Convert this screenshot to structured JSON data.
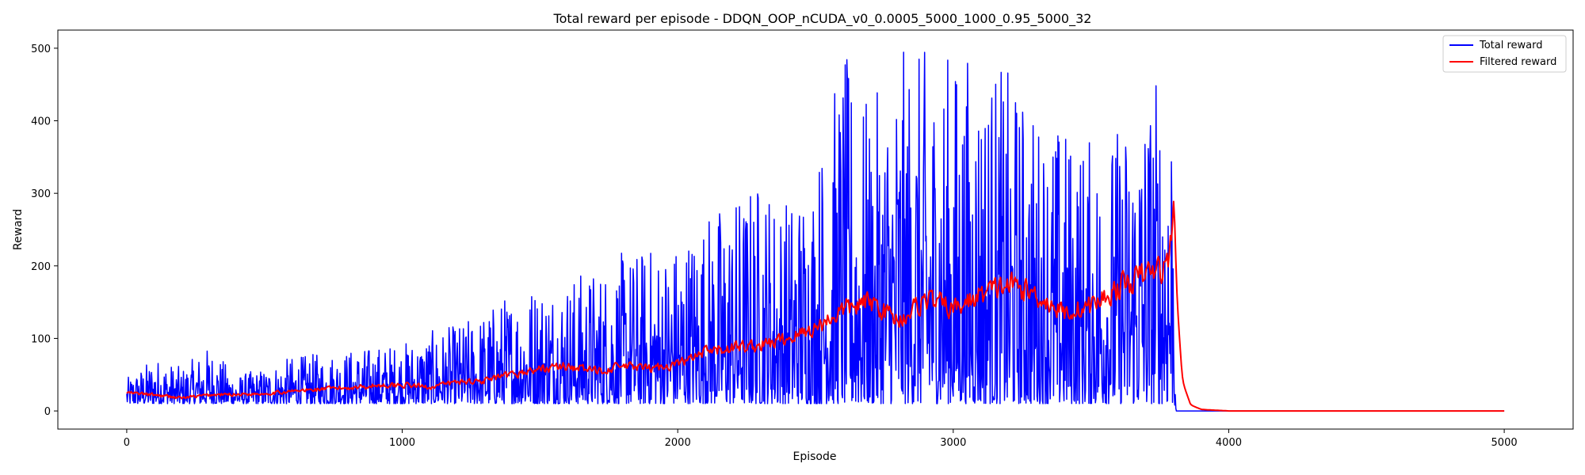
{
  "chart_data": {
    "type": "line",
    "title": "Total reward per episode - DDQN_OOP_nCUDA_v0_0.0005_5000_1000_0.95_5000_32",
    "xlabel": "Episode",
    "ylabel": "Reward",
    "xlim": [
      -250,
      5250
    ],
    "ylim": [
      -25,
      525
    ],
    "xticks": [
      0,
      1000,
      2000,
      3000,
      4000,
      5000
    ],
    "yticks": [
      0,
      100,
      200,
      300,
      400,
      500
    ],
    "grid": false,
    "legend_position": "top-right",
    "series": [
      {
        "name": "Total reward",
        "color": "#0000ff",
        "x": [
          0,
          100,
          200,
          300,
          400,
          500,
          600,
          700,
          800,
          900,
          1000,
          1100,
          1200,
          1300,
          1400,
          1500,
          1600,
          1700,
          1800,
          1900,
          2000,
          2100,
          2200,
          2300,
          2400,
          2500,
          2600,
          2700,
          2800,
          2900,
          3000,
          3100,
          3200,
          3300,
          3400,
          3500,
          3600,
          3700,
          3800,
          3810,
          4000,
          5000
        ],
        "envelope_min": [
          10,
          10,
          10,
          10,
          10,
          10,
          10,
          10,
          10,
          10,
          10,
          10,
          10,
          10,
          10,
          10,
          10,
          10,
          10,
          10,
          10,
          10,
          10,
          10,
          10,
          10,
          10,
          10,
          10,
          10,
          10,
          10,
          10,
          10,
          10,
          10,
          10,
          10,
          10,
          0,
          0,
          0
        ],
        "envelope_max": [
          45,
          75,
          60,
          90,
          50,
          60,
          75,
          80,
          85,
          90,
          95,
          110,
          120,
          140,
          170,
          185,
          190,
          200,
          220,
          230,
          240,
          280,
          300,
          330,
          300,
          350,
          500,
          420,
          500,
          500,
          500,
          500,
          470,
          420,
          400,
          380,
          400,
          460,
          500,
          0,
          0,
          0
        ]
      },
      {
        "name": "Filtered reward",
        "color": "#ff0000",
        "x": [
          0,
          100,
          200,
          300,
          400,
          500,
          600,
          700,
          800,
          900,
          1000,
          1100,
          1200,
          1300,
          1400,
          1500,
          1600,
          1700,
          1800,
          1900,
          2000,
          2100,
          2200,
          2300,
          2400,
          2500,
          2600,
          2700,
          2800,
          2900,
          3000,
          3100,
          3200,
          3300,
          3400,
          3500,
          3600,
          3700,
          3780,
          3800,
          3810,
          3830,
          3860,
          3900,
          4000,
          5000
        ],
        "values": [
          25,
          22,
          18,
          22,
          23,
          24,
          27,
          30,
          32,
          35,
          36,
          33,
          40,
          42,
          50,
          58,
          62,
          55,
          62,
          58,
          65,
          80,
          88,
          90,
          100,
          115,
          140,
          150,
          125,
          155,
          140,
          160,
          175,
          160,
          135,
          145,
          170,
          190,
          200,
          305,
          150,
          40,
          8,
          2,
          0,
          0
        ]
      }
    ]
  }
}
